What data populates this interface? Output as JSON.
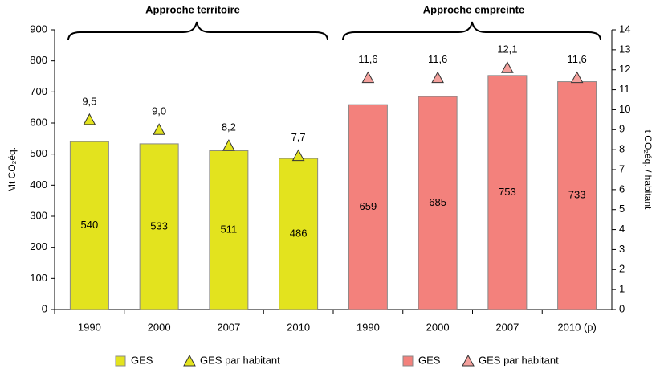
{
  "chart_data": {
    "type": "bar",
    "annotations": [
      "Approche territoire",
      "Approche empreinte"
    ],
    "ylabel": "Mt CO₂éq.",
    "y2label": "t CO₂éq. / habitant",
    "categories": [
      "1990",
      "2000",
      "2007",
      "2010",
      "1990",
      "2000",
      "2007",
      "2010 (p)"
    ],
    "series": [
      {
        "name": "GES",
        "type": "bar",
        "color": "#e3e31e",
        "values": [
          540,
          533,
          511,
          486,
          null,
          null,
          null,
          null
        ]
      },
      {
        "name": "GES par habitant",
        "type": "triangle",
        "axis": "y2",
        "color": "#e3e31e",
        "values": [
          9.5,
          9.0,
          8.2,
          7.7,
          null,
          null,
          null,
          null
        ],
        "value_labels": [
          "9,5",
          "9,0",
          "8,2",
          "7,7",
          null,
          null,
          null,
          null
        ]
      },
      {
        "name": "GES",
        "type": "bar",
        "color": "#f3817c",
        "values": [
          null,
          null,
          null,
          null,
          659,
          685,
          753,
          733
        ]
      },
      {
        "name": "GES par habitant",
        "type": "triangle",
        "axis": "y2",
        "color": "#f3a09c",
        "values": [
          null,
          null,
          null,
          null,
          11.6,
          11.6,
          12.1,
          11.6
        ],
        "value_labels": [
          null,
          null,
          null,
          null,
          "11,6",
          "11,6",
          "12,1",
          "11,6"
        ]
      }
    ],
    "ylim": [
      0,
      900
    ],
    "yticks": [
      0,
      100,
      200,
      300,
      400,
      500,
      600,
      700,
      800,
      900
    ],
    "y2lim": [
      0,
      14
    ],
    "y2ticks": [
      0,
      1,
      2,
      3,
      4,
      5,
      6,
      7,
      8,
      9,
      10,
      11,
      12,
      13,
      14
    ],
    "grid": false
  }
}
